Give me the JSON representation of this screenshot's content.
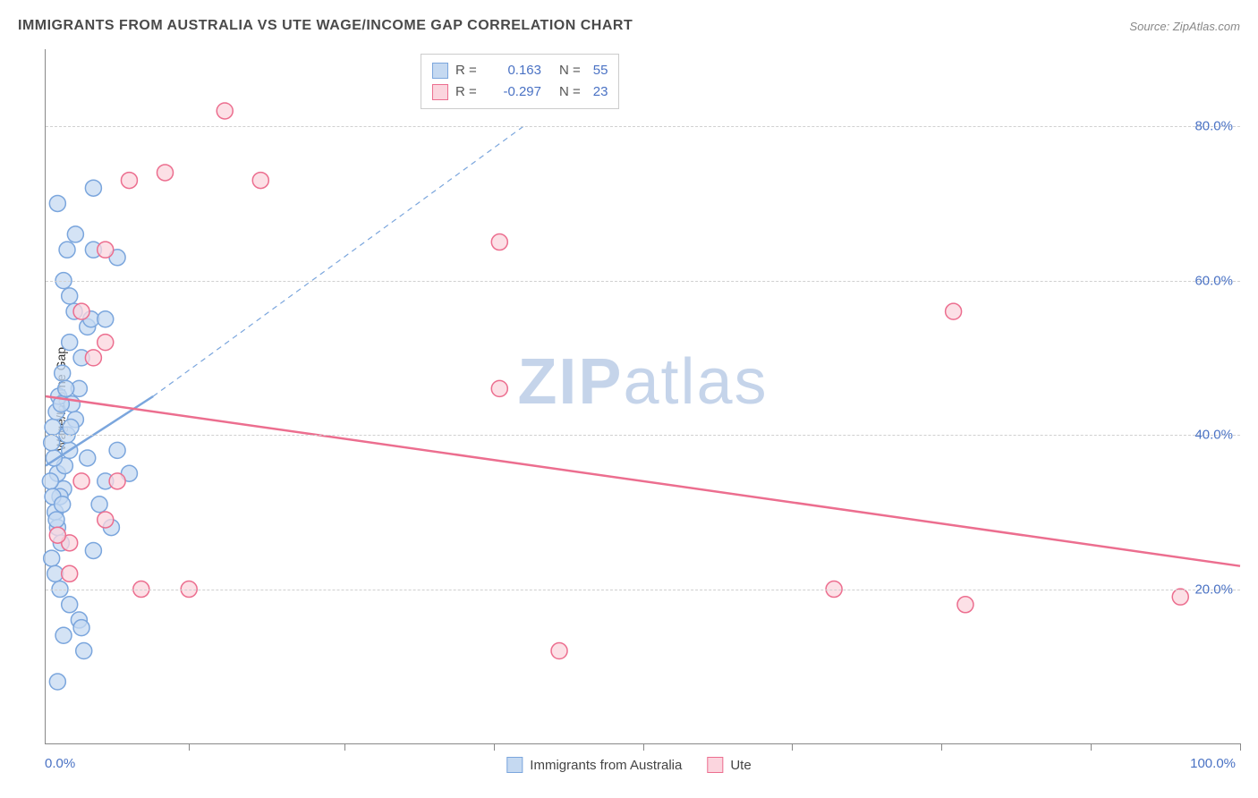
{
  "title": "IMMIGRANTS FROM AUSTRALIA VS UTE WAGE/INCOME GAP CORRELATION CHART",
  "source_label": "Source:",
  "source_name": "ZipAtlas.com",
  "watermark_zip": "ZIP",
  "watermark_atlas": "atlas",
  "axes": {
    "y_title": "Wage/Income Gap",
    "x_min_label": "0.0%",
    "x_max_label": "100.0%",
    "y_ticks": [
      {
        "value": 20,
        "label": "20.0%"
      },
      {
        "value": 40,
        "label": "40.0%"
      },
      {
        "value": 60,
        "label": "60.0%"
      },
      {
        "value": 80,
        "label": "80.0%"
      }
    ],
    "x_tick_positions": [
      12,
      25,
      37.5,
      50,
      62.5,
      75,
      87.5,
      100
    ],
    "x_domain": [
      0,
      100
    ],
    "y_domain": [
      0,
      90
    ]
  },
  "series": [
    {
      "id": "immigrants",
      "label": "Immigrants from Australia",
      "color_fill": "#c5d9f1",
      "color_stroke": "#7ba6dd",
      "r_value": "0.163",
      "n_value": "55",
      "trend_line": {
        "x1": 0,
        "y1": 36,
        "x2": 9,
        "y2": 45,
        "dashed_extend": {
          "x2": 40,
          "y2": 80
        }
      },
      "points": [
        {
          "x": 1,
          "y": 35
        },
        {
          "x": 1.5,
          "y": 33
        },
        {
          "x": 0.8,
          "y": 30
        },
        {
          "x": 1.2,
          "y": 32
        },
        {
          "x": 2,
          "y": 38
        },
        {
          "x": 1.8,
          "y": 40
        },
        {
          "x": 2.5,
          "y": 42
        },
        {
          "x": 1,
          "y": 28
        },
        {
          "x": 1.3,
          "y": 26
        },
        {
          "x": 2.2,
          "y": 44
        },
        {
          "x": 1.6,
          "y": 36
        },
        {
          "x": 2.8,
          "y": 46
        },
        {
          "x": 1.4,
          "y": 48
        },
        {
          "x": 3,
          "y": 50
        },
        {
          "x": 2,
          "y": 52
        },
        {
          "x": 3.5,
          "y": 54
        },
        {
          "x": 2.4,
          "y": 56
        },
        {
          "x": 2,
          "y": 58
        },
        {
          "x": 3.8,
          "y": 55
        },
        {
          "x": 1.5,
          "y": 60
        },
        {
          "x": 1.8,
          "y": 64
        },
        {
          "x": 2.5,
          "y": 66
        },
        {
          "x": 1,
          "y": 70
        },
        {
          "x": 4,
          "y": 72
        },
        {
          "x": 0.5,
          "y": 24
        },
        {
          "x": 0.8,
          "y": 22
        },
        {
          "x": 1.2,
          "y": 20
        },
        {
          "x": 2,
          "y": 18
        },
        {
          "x": 2.8,
          "y": 16
        },
        {
          "x": 1.5,
          "y": 14
        },
        {
          "x": 3.2,
          "y": 12
        },
        {
          "x": 1,
          "y": 8
        },
        {
          "x": 3.5,
          "y": 37
        },
        {
          "x": 4.5,
          "y": 31
        },
        {
          "x": 5,
          "y": 34
        },
        {
          "x": 6,
          "y": 38
        },
        {
          "x": 5.5,
          "y": 28
        },
        {
          "x": 4,
          "y": 25
        },
        {
          "x": 7,
          "y": 35
        },
        {
          "x": 0.6,
          "y": 41
        },
        {
          "x": 0.9,
          "y": 43
        },
        {
          "x": 1.1,
          "y": 45
        },
        {
          "x": 0.7,
          "y": 37
        },
        {
          "x": 0.5,
          "y": 39
        },
        {
          "x": 1.3,
          "y": 44
        },
        {
          "x": 1.7,
          "y": 46
        },
        {
          "x": 2.1,
          "y": 41
        },
        {
          "x": 0.4,
          "y": 34
        },
        {
          "x": 0.6,
          "y": 32
        },
        {
          "x": 0.9,
          "y": 29
        },
        {
          "x": 1.4,
          "y": 31
        },
        {
          "x": 5,
          "y": 55
        },
        {
          "x": 3,
          "y": 15
        },
        {
          "x": 6,
          "y": 63
        },
        {
          "x": 4,
          "y": 64
        }
      ]
    },
    {
      "id": "ute",
      "label": "Ute",
      "color_fill": "#fbd5de",
      "color_stroke": "#ec6e8f",
      "r_value": "-0.297",
      "n_value": "23",
      "trend_line": {
        "x1": 0,
        "y1": 45,
        "x2": 100,
        "y2": 23
      },
      "points": [
        {
          "x": 2,
          "y": 26
        },
        {
          "x": 3,
          "y": 34
        },
        {
          "x": 5,
          "y": 29
        },
        {
          "x": 4,
          "y": 50
        },
        {
          "x": 5,
          "y": 52
        },
        {
          "x": 3,
          "y": 56
        },
        {
          "x": 8,
          "y": 20
        },
        {
          "x": 12,
          "y": 20
        },
        {
          "x": 15,
          "y": 82
        },
        {
          "x": 10,
          "y": 74
        },
        {
          "x": 7,
          "y": 73
        },
        {
          "x": 18,
          "y": 73
        },
        {
          "x": 38,
          "y": 65
        },
        {
          "x": 38,
          "y": 46
        },
        {
          "x": 43,
          "y": 12
        },
        {
          "x": 66,
          "y": 20
        },
        {
          "x": 77,
          "y": 18
        },
        {
          "x": 95,
          "y": 19
        },
        {
          "x": 76,
          "y": 56
        },
        {
          "x": 5,
          "y": 64
        },
        {
          "x": 6,
          "y": 34
        },
        {
          "x": 1,
          "y": 27
        },
        {
          "x": 2,
          "y": 22
        }
      ]
    }
  ],
  "legend_labels": {
    "R": "R =",
    "N": "N ="
  },
  "styling": {
    "background": "#ffffff",
    "grid_color": "#d0d0d0",
    "axis_color": "#888888",
    "label_color": "#4a72c4",
    "watermark_color": "#c5d4ea",
    "title_color": "#4a4a4a",
    "point_radius": 9,
    "line_width": 2.5
  }
}
